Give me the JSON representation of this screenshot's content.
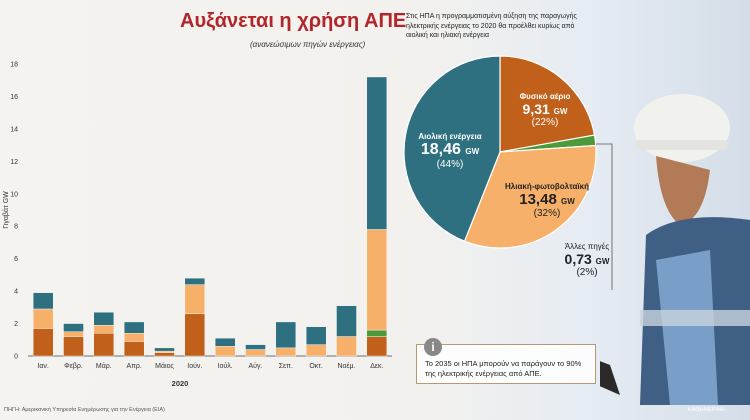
{
  "title": "Αυξάνεται η χρήση ΑΠΕ",
  "subtitle": "(ανανεώσιμων πηγών ενέργειας)",
  "intro": "Στις ΗΠΑ η προγραμματισμένη αύξηση της παραγωγής ηλεκτρικής ενέργειας το 2020 θα προέλθει κυρίως από αιολική και ηλιακή ενέργεια",
  "info_icon": "i",
  "info_text": "Το 2035 οι ΗΠΑ μπορούν να παράγουν το 90% της ηλεκτρικής ενέργειας από ΑΠΕ.",
  "source": "ΠΗΓΗ: Αμερικανική Υπηρεσία Ενημέρωσης για την Ενέργεια (EIA)",
  "credit": "ΚΑΘΗΜΕΡΙΝΗ",
  "colors": {
    "wind": "#2f7080",
    "solar": "#f7b06a",
    "gas": "#c0601a",
    "other": "#4c9a3c"
  },
  "chart_data": [
    {
      "type": "bar",
      "stacked": true,
      "ylabel": "Γιγαβάτ GW",
      "xlabel": "2020",
      "ylim": [
        0,
        18
      ],
      "yticks": [
        0,
        2,
        4,
        6,
        8,
        10,
        12,
        14,
        16,
        18
      ],
      "grid": false,
      "categories": [
        "Ιαν.",
        "Φεβρ.",
        "Μάρ.",
        "Απρ.",
        "Μάιος",
        "Ιούν.",
        "Ιούλ.",
        "Αύγ.",
        "Σεπ.",
        "Οκτ.",
        "Νοέμ.",
        "Δεκ."
      ],
      "series": [
        {
          "key": "gas",
          "values": [
            1.7,
            1.2,
            1.4,
            0.9,
            0.2,
            2.6,
            0.0,
            0.0,
            0.0,
            0.0,
            0.0,
            1.2
          ]
        },
        {
          "key": "other",
          "values": [
            0.0,
            0.0,
            0.0,
            0.0,
            0.0,
            0.0,
            0.0,
            0.0,
            0.0,
            0.0,
            0.0,
            0.4
          ]
        },
        {
          "key": "solar",
          "values": [
            1.2,
            0.3,
            0.5,
            0.5,
            0.1,
            1.8,
            0.6,
            0.4,
            0.5,
            0.7,
            1.2,
            6.2
          ]
        },
        {
          "key": "wind",
          "values": [
            1.0,
            0.5,
            0.8,
            0.7,
            0.2,
            0.4,
            0.5,
            0.3,
            1.6,
            1.1,
            1.9,
            9.4
          ]
        }
      ]
    },
    {
      "type": "pie",
      "slices": [
        {
          "key": "gas",
          "name": "Φυσικό αέριο",
          "value": 9.31,
          "value_text": "9,31",
          "unit": "GW",
          "pct": "(22%)"
        },
        {
          "key": "other",
          "name": "Άλλες πηγές",
          "value": 0.73,
          "value_text": "0,73",
          "unit": "GW",
          "pct": "(2%)"
        },
        {
          "key": "solar",
          "name": "Ηλιακή-φωτοβολταϊκή",
          "value": 13.48,
          "value_text": "13,48",
          "unit": "GW",
          "pct": "(32%)"
        },
        {
          "key": "wind",
          "name": "Αιολική ενέργεια",
          "value": 18.46,
          "value_text": "18,46",
          "unit": "GW",
          "pct": "(44%)"
        }
      ]
    }
  ]
}
